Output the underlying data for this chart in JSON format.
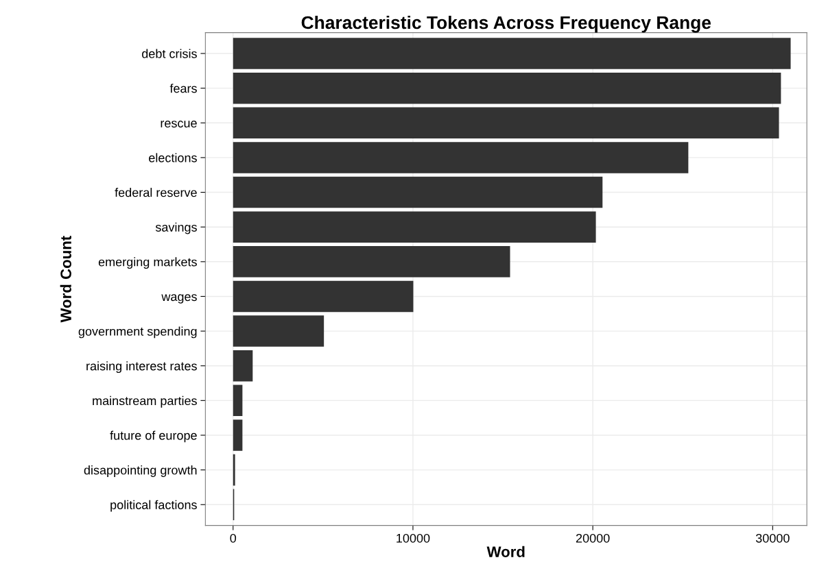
{
  "chart_data": {
    "type": "bar",
    "orientation": "horizontal",
    "title": "Characteristic Tokens Across Frequency Range",
    "xlabel": "Word",
    "ylabel": "Word Count",
    "categories": [
      "debt crisis",
      "fears",
      "rescue",
      "elections",
      "federal reserve",
      "savings",
      "emerging markets",
      "wages",
      "government spending",
      "raising interest rates",
      "mainstream parties",
      "future of europe",
      "disappointing growth",
      "political factions"
    ],
    "values": [
      31000,
      30460,
      30350,
      25310,
      20540,
      20170,
      15400,
      10020,
      5050,
      1090,
      520,
      520,
      110,
      60
    ],
    "color": "#333333",
    "xlim": [
      -1540,
      31900
    ],
    "xticks": [
      0,
      10000,
      20000,
      30000
    ],
    "grid": true
  }
}
